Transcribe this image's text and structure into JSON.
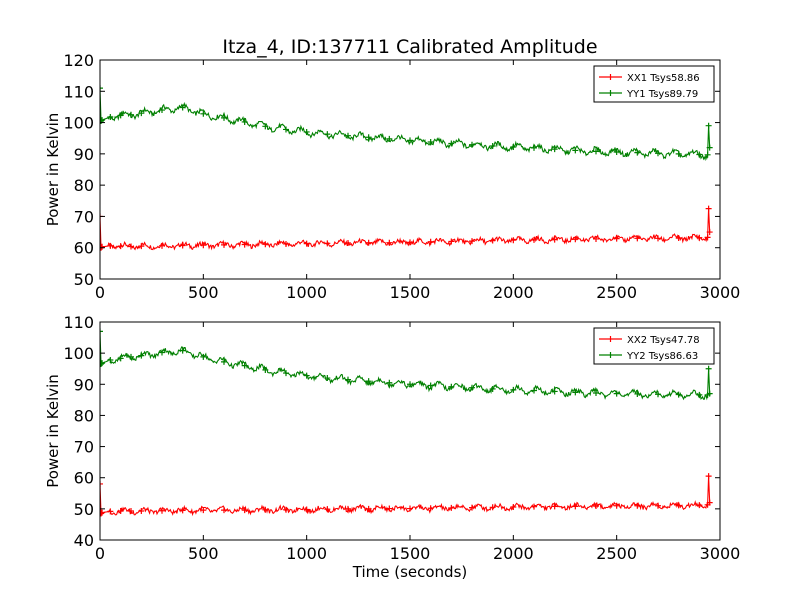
{
  "title": "Itza_4, ID:137711 Calibrated Amplitude",
  "chart_data": [
    {
      "type": "line",
      "title": "Itza_4, ID:137711 Calibrated Amplitude",
      "xlabel": "",
      "ylabel": "Power in Kelvin",
      "xlim": [
        0,
        3000
      ],
      "ylim": [
        50,
        120
      ],
      "xticks": [
        0,
        500,
        1000,
        1500,
        2000,
        2500,
        3000
      ],
      "yticks": [
        50,
        60,
        70,
        80,
        90,
        100,
        110,
        120
      ],
      "grid": false,
      "legend_position": "top-right",
      "series": [
        {
          "name": "XX1 Tsys58.86",
          "color": "#ff0000",
          "x": [
            0,
            5,
            10,
            50,
            100,
            150,
            200,
            300,
            400,
            500,
            600,
            700,
            800,
            900,
            1000,
            1100,
            1200,
            1300,
            1400,
            1500,
            1600,
            1700,
            1800,
            1900,
            2000,
            2100,
            2200,
            2300,
            2400,
            2500,
            2600,
            2700,
            2800,
            2900,
            2940,
            2945,
            2950
          ],
          "y": [
            70,
            60,
            60.3,
            60.6,
            60.5,
            60.4,
            60.5,
            60.6,
            60.7,
            60.8,
            60.9,
            61.0,
            61.1,
            61.2,
            61.3,
            61.4,
            61.5,
            61.6,
            61.6,
            61.7,
            61.9,
            62.0,
            62.1,
            62.3,
            62.4,
            62.5,
            62.6,
            62.7,
            62.8,
            62.9,
            63.0,
            63.0,
            63.1,
            63.2,
            63.3,
            72.5,
            65
          ]
        },
        {
          "name": "YY1 Tsys89.79",
          "color": "#008000",
          "x": [
            0,
            5,
            10,
            50,
            100,
            150,
            200,
            300,
            400,
            500,
            600,
            700,
            800,
            900,
            1000,
            1100,
            1200,
            1300,
            1400,
            1500,
            1600,
            1700,
            1800,
            1900,
            2000,
            2100,
            2200,
            2300,
            2400,
            2500,
            2600,
            2700,
            2800,
            2900,
            2940,
            2945,
            2950
          ],
          "y": [
            111,
            100.5,
            100.8,
            101.8,
            102.3,
            102.5,
            103.0,
            104.0,
            104.8,
            102.8,
            101.5,
            100.2,
            98.8,
            97.8,
            97.0,
            96.3,
            95.8,
            95.3,
            94.8,
            94.3,
            93.8,
            93.3,
            92.9,
            92.5,
            92.2,
            91.9,
            91.5,
            91.1,
            90.8,
            90.6,
            90.4,
            90.2,
            90.0,
            89.8,
            89.7,
            99,
            92
          ]
        }
      ]
    },
    {
      "type": "line",
      "title": "",
      "xlabel": "Time (seconds)",
      "ylabel": "Power in Kelvin",
      "xlim": [
        0,
        3000
      ],
      "ylim": [
        40,
        110
      ],
      "xticks": [
        0,
        500,
        1000,
        1500,
        2000,
        2500,
        3000
      ],
      "yticks": [
        40,
        50,
        60,
        70,
        80,
        90,
        100,
        110
      ],
      "grid": false,
      "legend_position": "top-right",
      "series": [
        {
          "name": "XX2 Tsys47.78",
          "color": "#ff0000",
          "x": [
            0,
            5,
            10,
            50,
            100,
            150,
            200,
            300,
            400,
            500,
            600,
            700,
            800,
            900,
            1000,
            1100,
            1200,
            1300,
            1400,
            1500,
            1600,
            1700,
            1800,
            1900,
            2000,
            2100,
            2200,
            2300,
            2400,
            2500,
            2600,
            2700,
            2800,
            2900,
            2940,
            2945,
            2950
          ],
          "y": [
            58,
            48.5,
            48.8,
            49.2,
            49.3,
            49.3,
            49.3,
            49.4,
            49.5,
            49.6,
            49.6,
            49.6,
            49.7,
            49.7,
            49.8,
            49.9,
            50.0,
            50.0,
            50.1,
            50.1,
            50.2,
            50.3,
            50.4,
            50.5,
            50.6,
            50.7,
            50.8,
            50.8,
            50.9,
            51.0,
            51.0,
            51.0,
            51.1,
            51.2,
            51.3,
            60.5,
            52
          ]
        },
        {
          "name": "YY2 Tsys86.63",
          "color": "#008000",
          "x": [
            0,
            5,
            10,
            50,
            100,
            150,
            200,
            300,
            400,
            500,
            600,
            700,
            800,
            900,
            1000,
            1100,
            1200,
            1300,
            1400,
            1500,
            1600,
            1700,
            1800,
            1900,
            2000,
            2100,
            2200,
            2300,
            2400,
            2500,
            2600,
            2700,
            2800,
            2900,
            2940,
            2945,
            2950
          ],
          "y": [
            107,
            96.5,
            96.8,
            97.8,
            98.3,
            98.8,
            99.2,
            100.2,
            100.8,
            98.8,
            97.2,
            96.0,
            94.6,
            93.6,
            92.8,
            92.0,
            91.5,
            91.0,
            90.5,
            90.0,
            89.6,
            89.2,
            88.9,
            88.5,
            88.2,
            88.0,
            87.7,
            87.4,
            87.2,
            87.0,
            86.9,
            86.8,
            86.7,
            86.6,
            86.6,
            95,
            87
          ]
        }
      ]
    }
  ]
}
